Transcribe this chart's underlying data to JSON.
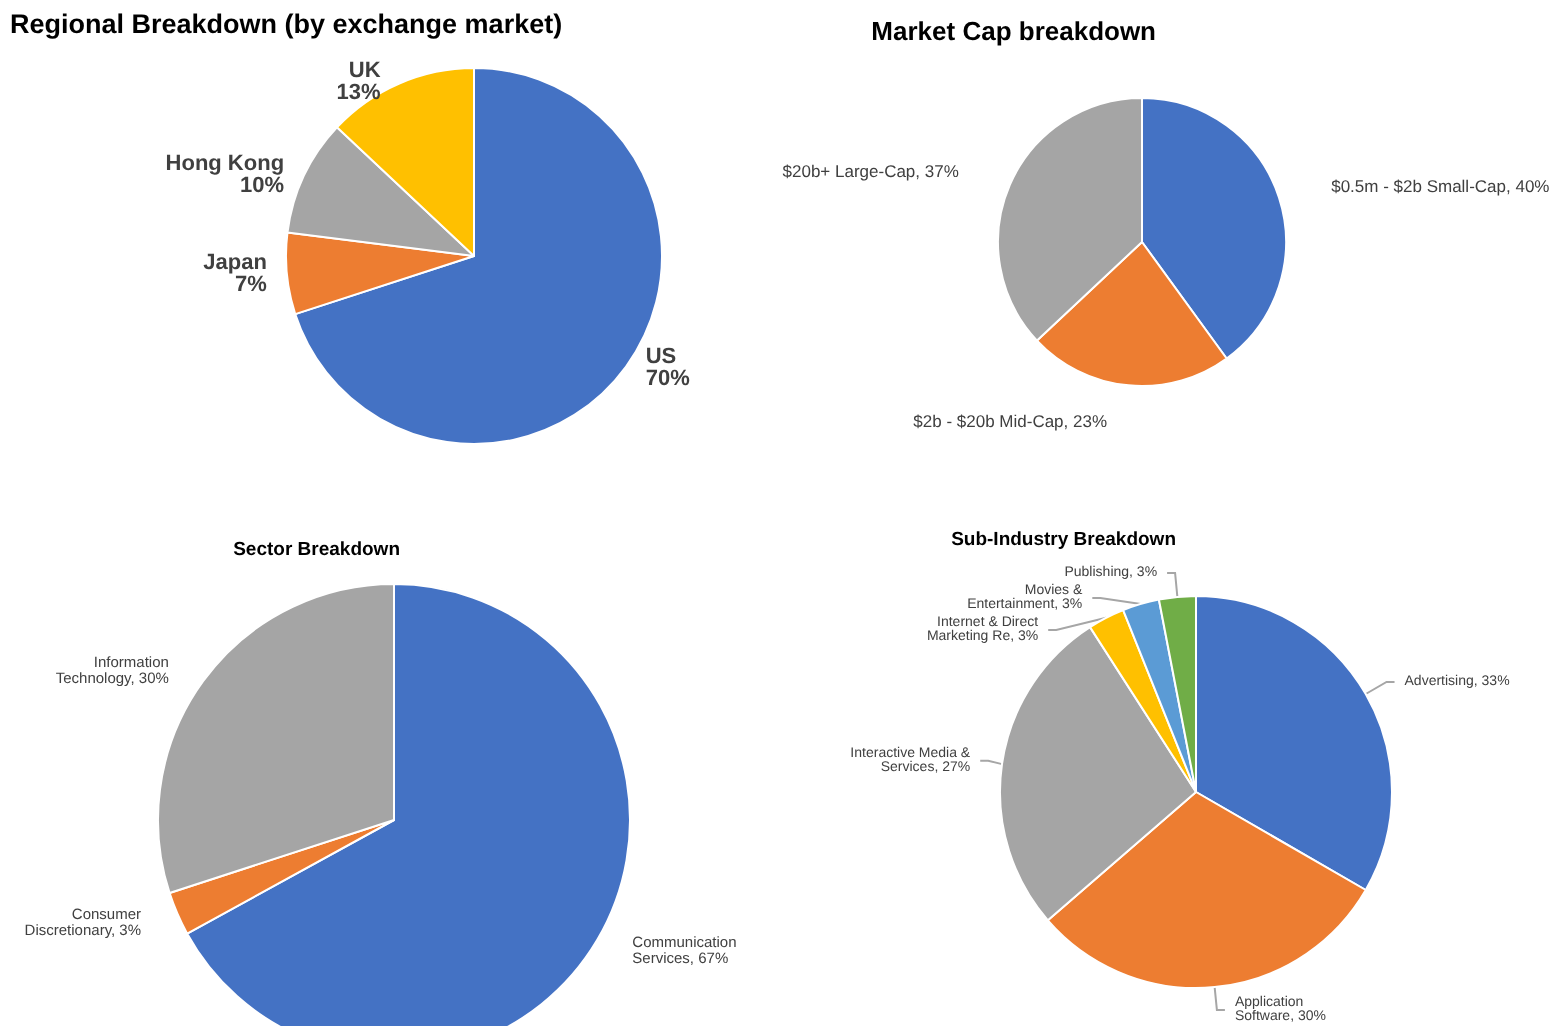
{
  "chart_data": [
    {
      "type": "pie",
      "title": "Regional Breakdown (by exchange market)",
      "categories": [
        "US",
        "Japan",
        "Hong Kong",
        "UK"
      ],
      "values": [
        70,
        7,
        10,
        13
      ],
      "colors": [
        "#4472c4",
        "#ed7d31",
        "#a5a5a5",
        "#ffc000"
      ],
      "value_labels": [
        "70%",
        "7%",
        "10%",
        "13%"
      ]
    },
    {
      "type": "pie",
      "title": "Market Cap breakdown",
      "categories": [
        "$0.5m - $2b Small-Cap",
        "$2b - $20b Mid-Cap",
        "$20b+ Large-Cap"
      ],
      "values": [
        40,
        23,
        37
      ],
      "colors": [
        "#4472c4",
        "#ed7d31",
        "#a5a5a5"
      ],
      "value_labels": [
        "40%",
        "23%",
        "37%"
      ]
    },
    {
      "type": "pie",
      "title": "Sector Breakdown",
      "categories": [
        "Communication Services",
        "Consumer Discretionary",
        "Information Technology"
      ],
      "values": [
        67,
        3,
        30
      ],
      "colors": [
        "#4472c4",
        "#ed7d31",
        "#a5a5a5"
      ],
      "value_labels": [
        "67%",
        "3%",
        "30%"
      ]
    },
    {
      "type": "pie",
      "title": "Sub-Industry Breakdown",
      "categories": [
        "Advertising",
        "Application Software",
        "Interactive Media & Services",
        "Internet & Direct Marketing Re",
        "Movies & Entertainment",
        "Publishing"
      ],
      "values": [
        33,
        30,
        27,
        3,
        3,
        3
      ],
      "colors": [
        "#4472c4",
        "#ed7d31",
        "#a5a5a5",
        "#ffc000",
        "#5b9bd5",
        "#70ad47"
      ],
      "value_labels": [
        "33%",
        "30%",
        "27%",
        "3%",
        "3%",
        "3%"
      ]
    }
  ]
}
